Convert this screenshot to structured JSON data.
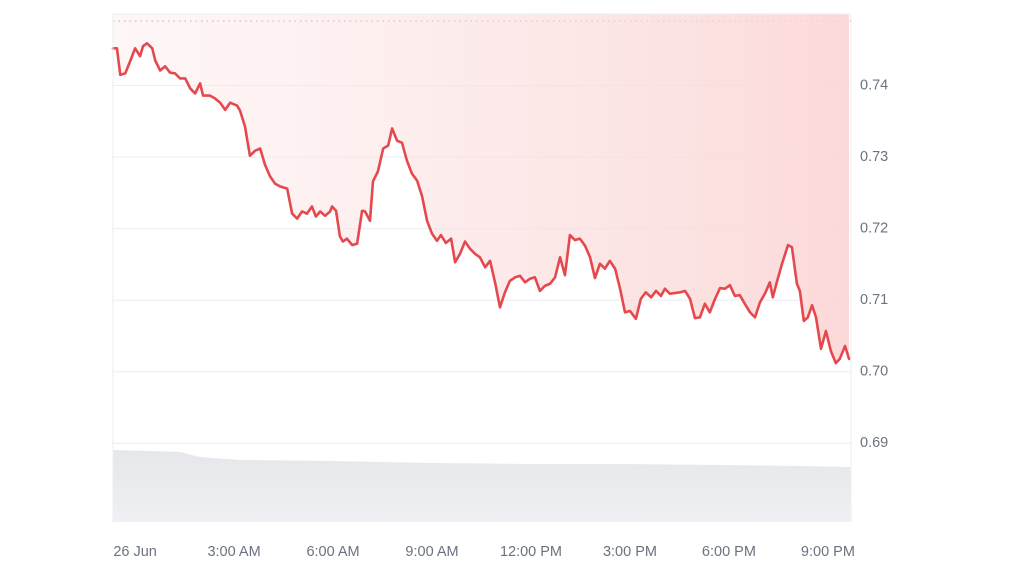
{
  "chart_data": {
    "type": "line",
    "color": "#e5484d",
    "grid": true,
    "reference_line": 0.749,
    "xlim": [
      -0.67,
      21.7
    ],
    "xticks": [
      {
        "value": 0,
        "label": "26 Jun"
      },
      {
        "value": 3,
        "label": "3:00 AM"
      },
      {
        "value": 6,
        "label": "6:00 AM"
      },
      {
        "value": 9,
        "label": "9:00 AM"
      },
      {
        "value": 12,
        "label": "12:00 PM"
      },
      {
        "value": 15,
        "label": "3:00 PM"
      },
      {
        "value": 18,
        "label": "6:00 PM"
      },
      {
        "value": 21,
        "label": "9:00 PM"
      }
    ],
    "ylim": [
      0.679,
      0.75
    ],
    "yticks": [
      0.69,
      {
        "value": 0.7,
        "label": "0.70"
      },
      0.71,
      0.72,
      0.73,
      0.74
    ],
    "x": [
      -0.67,
      -0.55,
      -0.45,
      -0.3,
      -0.15,
      0,
      0.15,
      0.24,
      0.36,
      0.52,
      0.61,
      0.76,
      0.91,
      1.06,
      1.21,
      1.36,
      1.52,
      1.67,
      1.82,
      1.97,
      2.06,
      2.27,
      2.42,
      2.58,
      2.73,
      2.88,
      3.09,
      3.18,
      3.33,
      3.48,
      3.64,
      3.79,
      3.94,
      4.09,
      4.24,
      4.39,
      4.61,
      4.76,
      4.91,
      5.06,
      5.21,
      5.36,
      5.48,
      5.61,
      5.76,
      5.91,
      5.97,
      6.09,
      6.21,
      6.3,
      6.42,
      6.58,
      6.73,
      6.88,
      6.97,
      7.12,
      7.21,
      7.36,
      7.52,
      7.67,
      7.79,
      7.94,
      8.09,
      8.24,
      8.39,
      8.55,
      8.7,
      8.85,
      9.0,
      9.15,
      9.27,
      9.42,
      9.58,
      9.7,
      9.85,
      10.0,
      10.15,
      10.3,
      10.45,
      10.61,
      10.76,
      10.91,
      11.06,
      11.21,
      11.36,
      11.52,
      11.67,
      11.82,
      11.97,
      12.12,
      12.27,
      12.42,
      12.58,
      12.73,
      12.88,
      13.03,
      13.18,
      13.33,
      13.48,
      13.64,
      13.79,
      13.94,
      14.09,
      14.24,
      14.39,
      14.55,
      14.7,
      14.85,
      15.0,
      15.18,
      15.33,
      15.48,
      15.64,
      15.79,
      15.94,
      16.06,
      16.21,
      16.36,
      16.52,
      16.67,
      16.82,
      16.97,
      17.12,
      17.27,
      17.42,
      17.58,
      17.73,
      17.88,
      18.03,
      18.18,
      18.33,
      18.48,
      18.64,
      18.79,
      18.94,
      19.09,
      19.24,
      19.33,
      19.45,
      19.61,
      19.79,
      19.91,
      20.06,
      20.15,
      20.27,
      20.39,
      20.52,
      20.64,
      20.79,
      20.94,
      21.09,
      21.24,
      21.36,
      21.52,
      21.64
    ],
    "values": [
      0.7452,
      0.7452,
      0.7415,
      0.7417,
      0.7434,
      0.7452,
      0.7441,
      0.7455,
      0.7459,
      0.7452,
      0.7435,
      0.7421,
      0.7427,
      0.7418,
      0.7417,
      0.741,
      0.741,
      0.7396,
      0.7389,
      0.7403,
      0.7386,
      0.7386,
      0.7382,
      0.7376,
      0.7366,
      0.7376,
      0.7372,
      0.7365,
      0.7343,
      0.7302,
      0.7309,
      0.7312,
      0.7289,
      0.7273,
      0.7263,
      0.7259,
      0.7256,
      0.7221,
      0.7214,
      0.7224,
      0.7221,
      0.7231,
      0.7217,
      0.7224,
      0.7218,
      0.7224,
      0.7231,
      0.7225,
      0.7189,
      0.7182,
      0.7186,
      0.7177,
      0.7179,
      0.7225,
      0.7224,
      0.7211,
      0.7266,
      0.728,
      0.7312,
      0.7316,
      0.734,
      0.7323,
      0.732,
      0.7295,
      0.7277,
      0.7267,
      0.7245,
      0.7211,
      0.7193,
      0.7183,
      0.7191,
      0.718,
      0.7186,
      0.7153,
      0.7165,
      0.7182,
      0.7172,
      0.7165,
      0.716,
      0.7146,
      0.7155,
      0.7125,
      0.709,
      0.7111,
      0.7127,
      0.7132,
      0.7134,
      0.7125,
      0.713,
      0.7132,
      0.7113,
      0.712,
      0.7123,
      0.7132,
      0.716,
      0.7135,
      0.7191,
      0.7184,
      0.7186,
      0.7176,
      0.716,
      0.7131,
      0.7151,
      0.7144,
      0.7155,
      0.7144,
      0.7116,
      0.7083,
      0.7085,
      0.7074,
      0.7102,
      0.7111,
      0.7104,
      0.7113,
      0.7106,
      0.7116,
      0.7109,
      0.711,
      0.7111,
      0.7113,
      0.7102,
      0.7075,
      0.7076,
      0.7095,
      0.7083,
      0.7102,
      0.7117,
      0.7116,
      0.7121,
      0.7106,
      0.7107,
      0.7095,
      0.7083,
      0.7076,
      0.7097,
      0.7109,
      0.7125,
      0.7104,
      0.7125,
      0.7151,
      0.7177,
      0.7174,
      0.7123,
      0.7113,
      0.7071,
      0.7076,
      0.7093,
      0.7076,
      0.7032,
      0.7057,
      0.7029,
      0.7012,
      0.7018,
      0.7036,
      0.7018
    ]
  }
}
